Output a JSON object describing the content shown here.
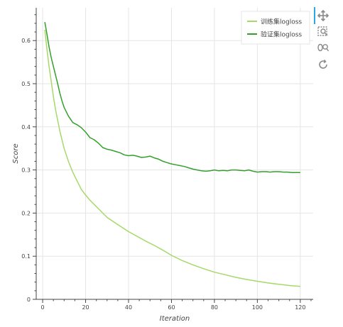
{
  "chart_data": {
    "type": "line",
    "title": "",
    "xlabel": "Iteration",
    "ylabel": "Score",
    "xlim": [
      -3,
      126
    ],
    "ylim": [
      0,
      0.676
    ],
    "x_ticks": [
      0,
      20,
      40,
      60,
      80,
      100,
      120
    ],
    "y_ticks": [
      0,
      0.1,
      0.2,
      0.3,
      0.4,
      0.5,
      0.6
    ],
    "x_tick_labels": [
      "0",
      "20",
      "40",
      "60",
      "80",
      "100",
      "120"
    ],
    "y_tick_labels": [
      "0",
      "0.1",
      "0.2",
      "0.3",
      "0.4",
      "0.5",
      "0.6"
    ],
    "grid": true,
    "legend_position": "top-right",
    "series": [
      {
        "name": "训练集logloss",
        "color": "#a6d96a",
        "x": [
          1,
          2,
          3,
          4,
          5,
          6,
          8,
          10,
          12,
          14,
          16,
          18,
          20,
          22,
          25,
          28,
          30,
          33,
          36,
          40,
          44,
          48,
          52,
          56,
          60,
          65,
          70,
          75,
          80,
          85,
          90,
          95,
          100,
          105,
          110,
          115,
          120
        ],
        "y": [
          0.625,
          0.58,
          0.54,
          0.505,
          0.47,
          0.44,
          0.39,
          0.35,
          0.32,
          0.295,
          0.275,
          0.255,
          0.242,
          0.23,
          0.215,
          0.2,
          0.19,
          0.18,
          0.17,
          0.157,
          0.146,
          0.135,
          0.125,
          0.114,
          0.102,
          0.09,
          0.08,
          0.071,
          0.063,
          0.057,
          0.051,
          0.046,
          0.042,
          0.038,
          0.035,
          0.032,
          0.03
        ]
      },
      {
        "name": "验证集logloss",
        "color": "#33a02c",
        "x": [
          1,
          2,
          3,
          4,
          5,
          6,
          7,
          8,
          9,
          10,
          12,
          14,
          16,
          18,
          20,
          22,
          24,
          26,
          28,
          30,
          32,
          34,
          36,
          38,
          40,
          42,
          44,
          46,
          48,
          50,
          52,
          54,
          56,
          58,
          60,
          62,
          64,
          66,
          68,
          70,
          72,
          74,
          76,
          78,
          80,
          82,
          84,
          86,
          88,
          90,
          92,
          94,
          96,
          98,
          100,
          102,
          104,
          106,
          108,
          110,
          112,
          114,
          116,
          118,
          120
        ],
        "y": [
          0.643,
          0.615,
          0.585,
          0.56,
          0.54,
          0.52,
          0.5,
          0.478,
          0.46,
          0.445,
          0.425,
          0.41,
          0.405,
          0.398,
          0.388,
          0.375,
          0.37,
          0.362,
          0.352,
          0.348,
          0.346,
          0.343,
          0.34,
          0.335,
          0.333,
          0.334,
          0.332,
          0.329,
          0.33,
          0.332,
          0.328,
          0.325,
          0.32,
          0.317,
          0.314,
          0.312,
          0.31,
          0.308,
          0.305,
          0.302,
          0.3,
          0.298,
          0.297,
          0.298,
          0.3,
          0.298,
          0.299,
          0.298,
          0.3,
          0.3,
          0.299,
          0.298,
          0.3,
          0.297,
          0.295,
          0.296,
          0.296,
          0.295,
          0.296,
          0.296,
          0.295,
          0.295,
          0.294,
          0.294,
          0.294
        ]
      }
    ]
  },
  "toolbar": {
    "tools": [
      "pan-icon",
      "box-zoom-icon",
      "wheel-zoom-icon",
      "reset-icon"
    ]
  }
}
